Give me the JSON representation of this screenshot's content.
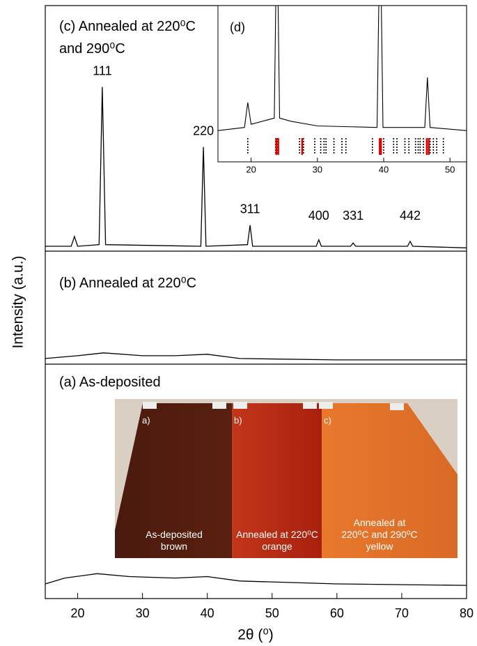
{
  "chart_data": [
    {
      "type": "line",
      "x_label": "2θ (⁰)",
      "y_label": "Intensity (a.u.)",
      "xlim": [
        15,
        80
      ],
      "xticks": [
        20,
        30,
        40,
        50,
        60,
        70,
        80
      ],
      "series": [
        {
          "name": "(c) Annealed at 220⁰C and 290⁰C",
          "color": "#000000",
          "ylim": [
            -1,
            150
          ],
          "x": [
            15,
            19,
            19.5,
            20,
            23.3,
            23.8,
            24.3,
            39,
            39.4,
            39.8,
            46.2,
            46.6,
            47,
            56.8,
            57.2,
            57.6,
            62.1,
            62.5,
            62.9,
            70.9,
            71.3,
            71.7,
            80
          ],
          "values": [
            2,
            2,
            8,
            2,
            3,
            100,
            3,
            2,
            63,
            2,
            3,
            15,
            2,
            2,
            6,
            2,
            2,
            4,
            2,
            2,
            5,
            2,
            1
          ]
        },
        {
          "name": "(b) Annealed at 220⁰C",
          "color": "#000000",
          "ylim": [
            0,
            40
          ],
          "x": [
            15,
            20,
            24,
            30,
            35,
            40,
            45,
            60,
            80
          ],
          "values": [
            2,
            3,
            4,
            3,
            3,
            3.5,
            2,
            1.5,
            1.5
          ]
        },
        {
          "name": "(a) As-deposited",
          "color": "#000000",
          "ylim": [
            0,
            80
          ],
          "x": [
            15,
            18,
            23,
            28,
            35,
            40,
            45,
            60,
            80
          ],
          "values": [
            5,
            7,
            8.5,
            7.5,
            7,
            7.5,
            6,
            5,
            4.5
          ]
        }
      ],
      "peak_labels": [
        {
          "label": "111",
          "x": 23.8
        },
        {
          "label": "220",
          "x": 39.4
        },
        {
          "label": "311",
          "x": 46.6
        },
        {
          "label": "400",
          "x": 57.2
        },
        {
          "label": "331",
          "x": 62.5
        },
        {
          "label": "442",
          "x": 71.3
        }
      ]
    },
    {
      "type": "line",
      "title": "(d)",
      "xlim": [
        15,
        52.5
      ],
      "xticks": [
        20,
        30,
        40,
        50
      ],
      "ylim": [
        -20,
        80
      ],
      "series": [
        {
          "color": "#000000",
          "x": [
            15,
            19,
            19.5,
            20,
            23.5,
            23.9,
            24.3,
            26,
            30,
            39,
            39.45,
            39.9,
            46.2,
            46.6,
            47,
            52.5
          ],
          "values": [
            0,
            2,
            18,
            4,
            8,
            140,
            8,
            6,
            3,
            2,
            140,
            2,
            2,
            34,
            2,
            0
          ]
        }
      ],
      "reference_lines": [
        {
          "color": "#000000",
          "x": [
            19.5,
            23.7,
            24.0,
            27.3,
            27.9,
            29.6,
            30.5,
            31.0,
            31.3,
            32.5,
            33.7,
            34.3,
            38.3,
            39.4,
            40.0,
            41.5,
            42.0,
            43.2,
            43.8,
            44.8,
            45.2,
            45.5,
            46.0,
            46.5,
            47.0,
            47.5,
            48.0,
            49.0
          ]
        },
        {
          "color": "#e00000",
          "x": [
            23.8,
            24.1,
            27.7,
            39.4,
            39.6,
            46.5,
            46.8
          ]
        }
      ]
    }
  ],
  "photo": {
    "labels": [
      "a)",
      "b)",
      "c)"
    ],
    "captions": [
      [
        "As-deposited",
        "brown"
      ],
      [
        "Annealed at 220⁰C",
        "orange"
      ],
      [
        "Annealed at",
        "220⁰C and 290⁰C",
        "yellow"
      ]
    ]
  }
}
